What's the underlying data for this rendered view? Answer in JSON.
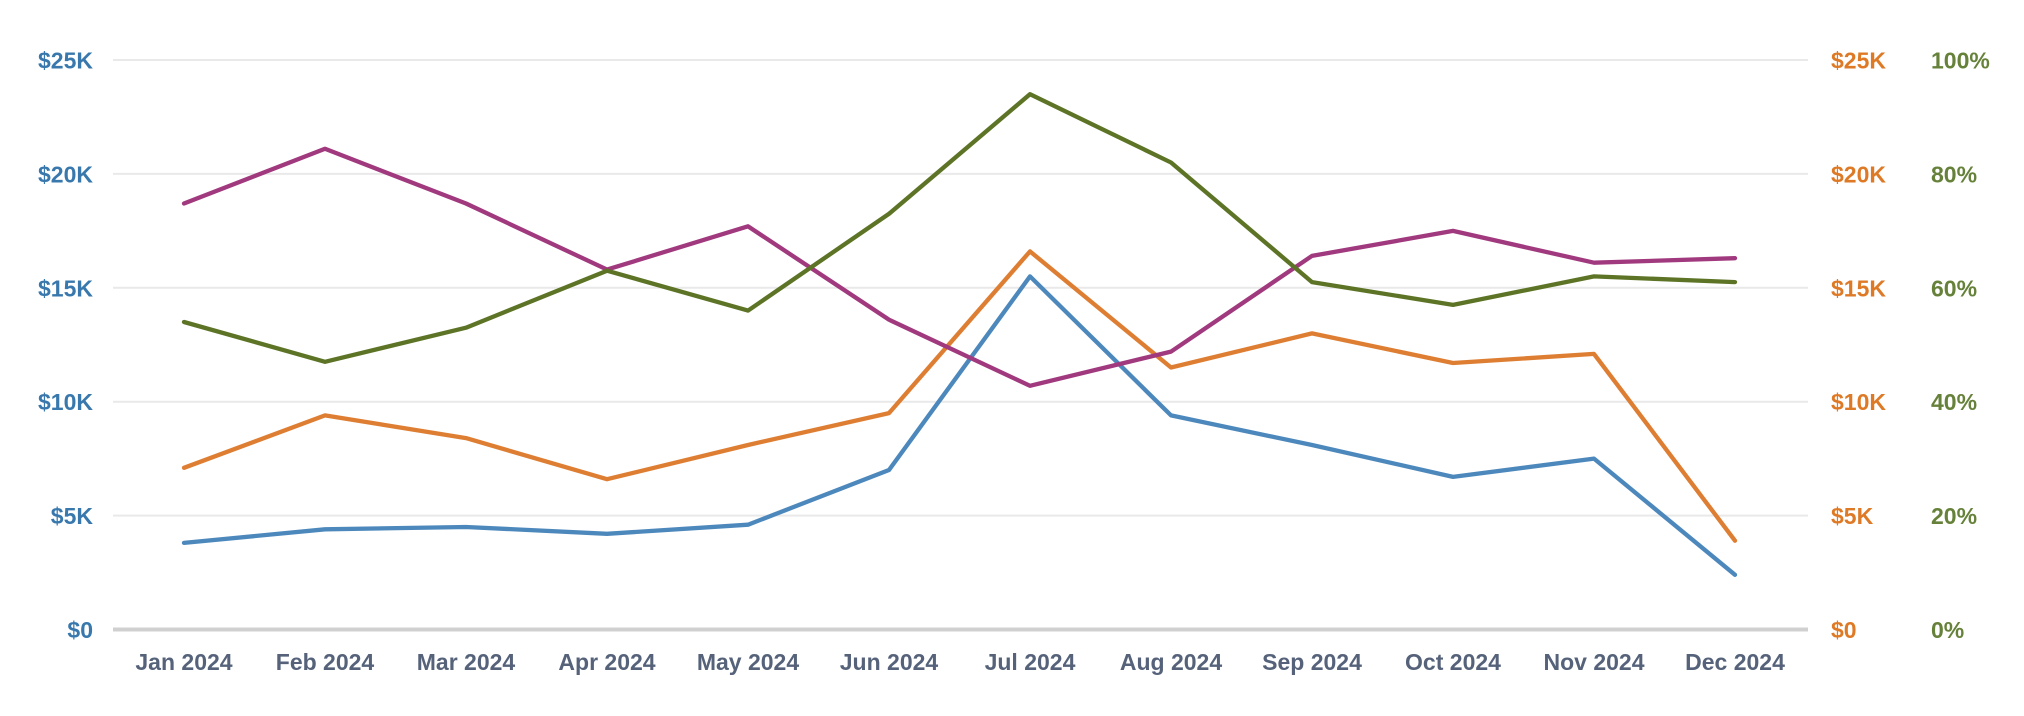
{
  "chart_data": {
    "type": "line",
    "title": "",
    "categories": [
      "Jan 2024",
      "Feb 2024",
      "Mar 2024",
      "Apr 2024",
      "May 2024",
      "Jun 2024",
      "Jul 2024",
      "Aug 2024",
      "Sep 2024",
      "Oct 2024",
      "Nov 2024",
      "Dec 2024"
    ],
    "series": [
      {
        "name": "blue-series",
        "yaxis": "money",
        "color": "#4d88bc",
        "values": [
          3800,
          4400,
          4500,
          4200,
          4600,
          7000,
          15500,
          9400,
          8100,
          6700,
          7500,
          2400
        ]
      },
      {
        "name": "orange-series",
        "yaxis": "money",
        "color": "#de7e33",
        "values": [
          7100,
          9400,
          8400,
          6600,
          8100,
          9500,
          16600,
          11500,
          13000,
          11700,
          12100,
          3900
        ]
      },
      {
        "name": "magenta-series",
        "yaxis": "money",
        "color": "#a1397e",
        "values": [
          18700,
          21100,
          18700,
          15800,
          17700,
          13600,
          10700,
          12200,
          16400,
          17500,
          16100,
          16300
        ]
      },
      {
        "name": "olive-series",
        "yaxis": "percent",
        "color": "#5d7426",
        "values": [
          54,
          47,
          53,
          63,
          56,
          73,
          94,
          82,
          61,
          57,
          62,
          61
        ]
      }
    ],
    "axes": {
      "left_money": {
        "ticks": [
          "$25K",
          "$20K",
          "$15K",
          "$10K",
          "$5K",
          "$0"
        ],
        "range": [
          0,
          25000
        ],
        "color": "#3878ad"
      },
      "right_money": {
        "ticks": [
          "$25K",
          "$20K",
          "$15K",
          "$10K",
          "$5K",
          "$0"
        ],
        "range": [
          0,
          25000
        ],
        "color": "#de7a26"
      },
      "right_percent": {
        "ticks": [
          "100%",
          "80%",
          "60%",
          "40%",
          "20%",
          "0%"
        ],
        "range": [
          0,
          100
        ],
        "color": "#66813a"
      },
      "x": {
        "labels": [
          "Jan 2024",
          "Feb 2024",
          "Mar 2024",
          "Apr 2024",
          "May 2024",
          "Jun 2024",
          "Jul 2024",
          "Aug 2024",
          "Sep 2024",
          "Oct 2024",
          "Nov 2024",
          "Dec 2024"
        ],
        "color": "#55627a"
      }
    },
    "grid": {
      "show": true,
      "line_color": "#e9e9e9",
      "baseline_color": "#d0d0d0",
      "background": "#ffffff"
    },
    "legend": {
      "visible": false
    }
  }
}
